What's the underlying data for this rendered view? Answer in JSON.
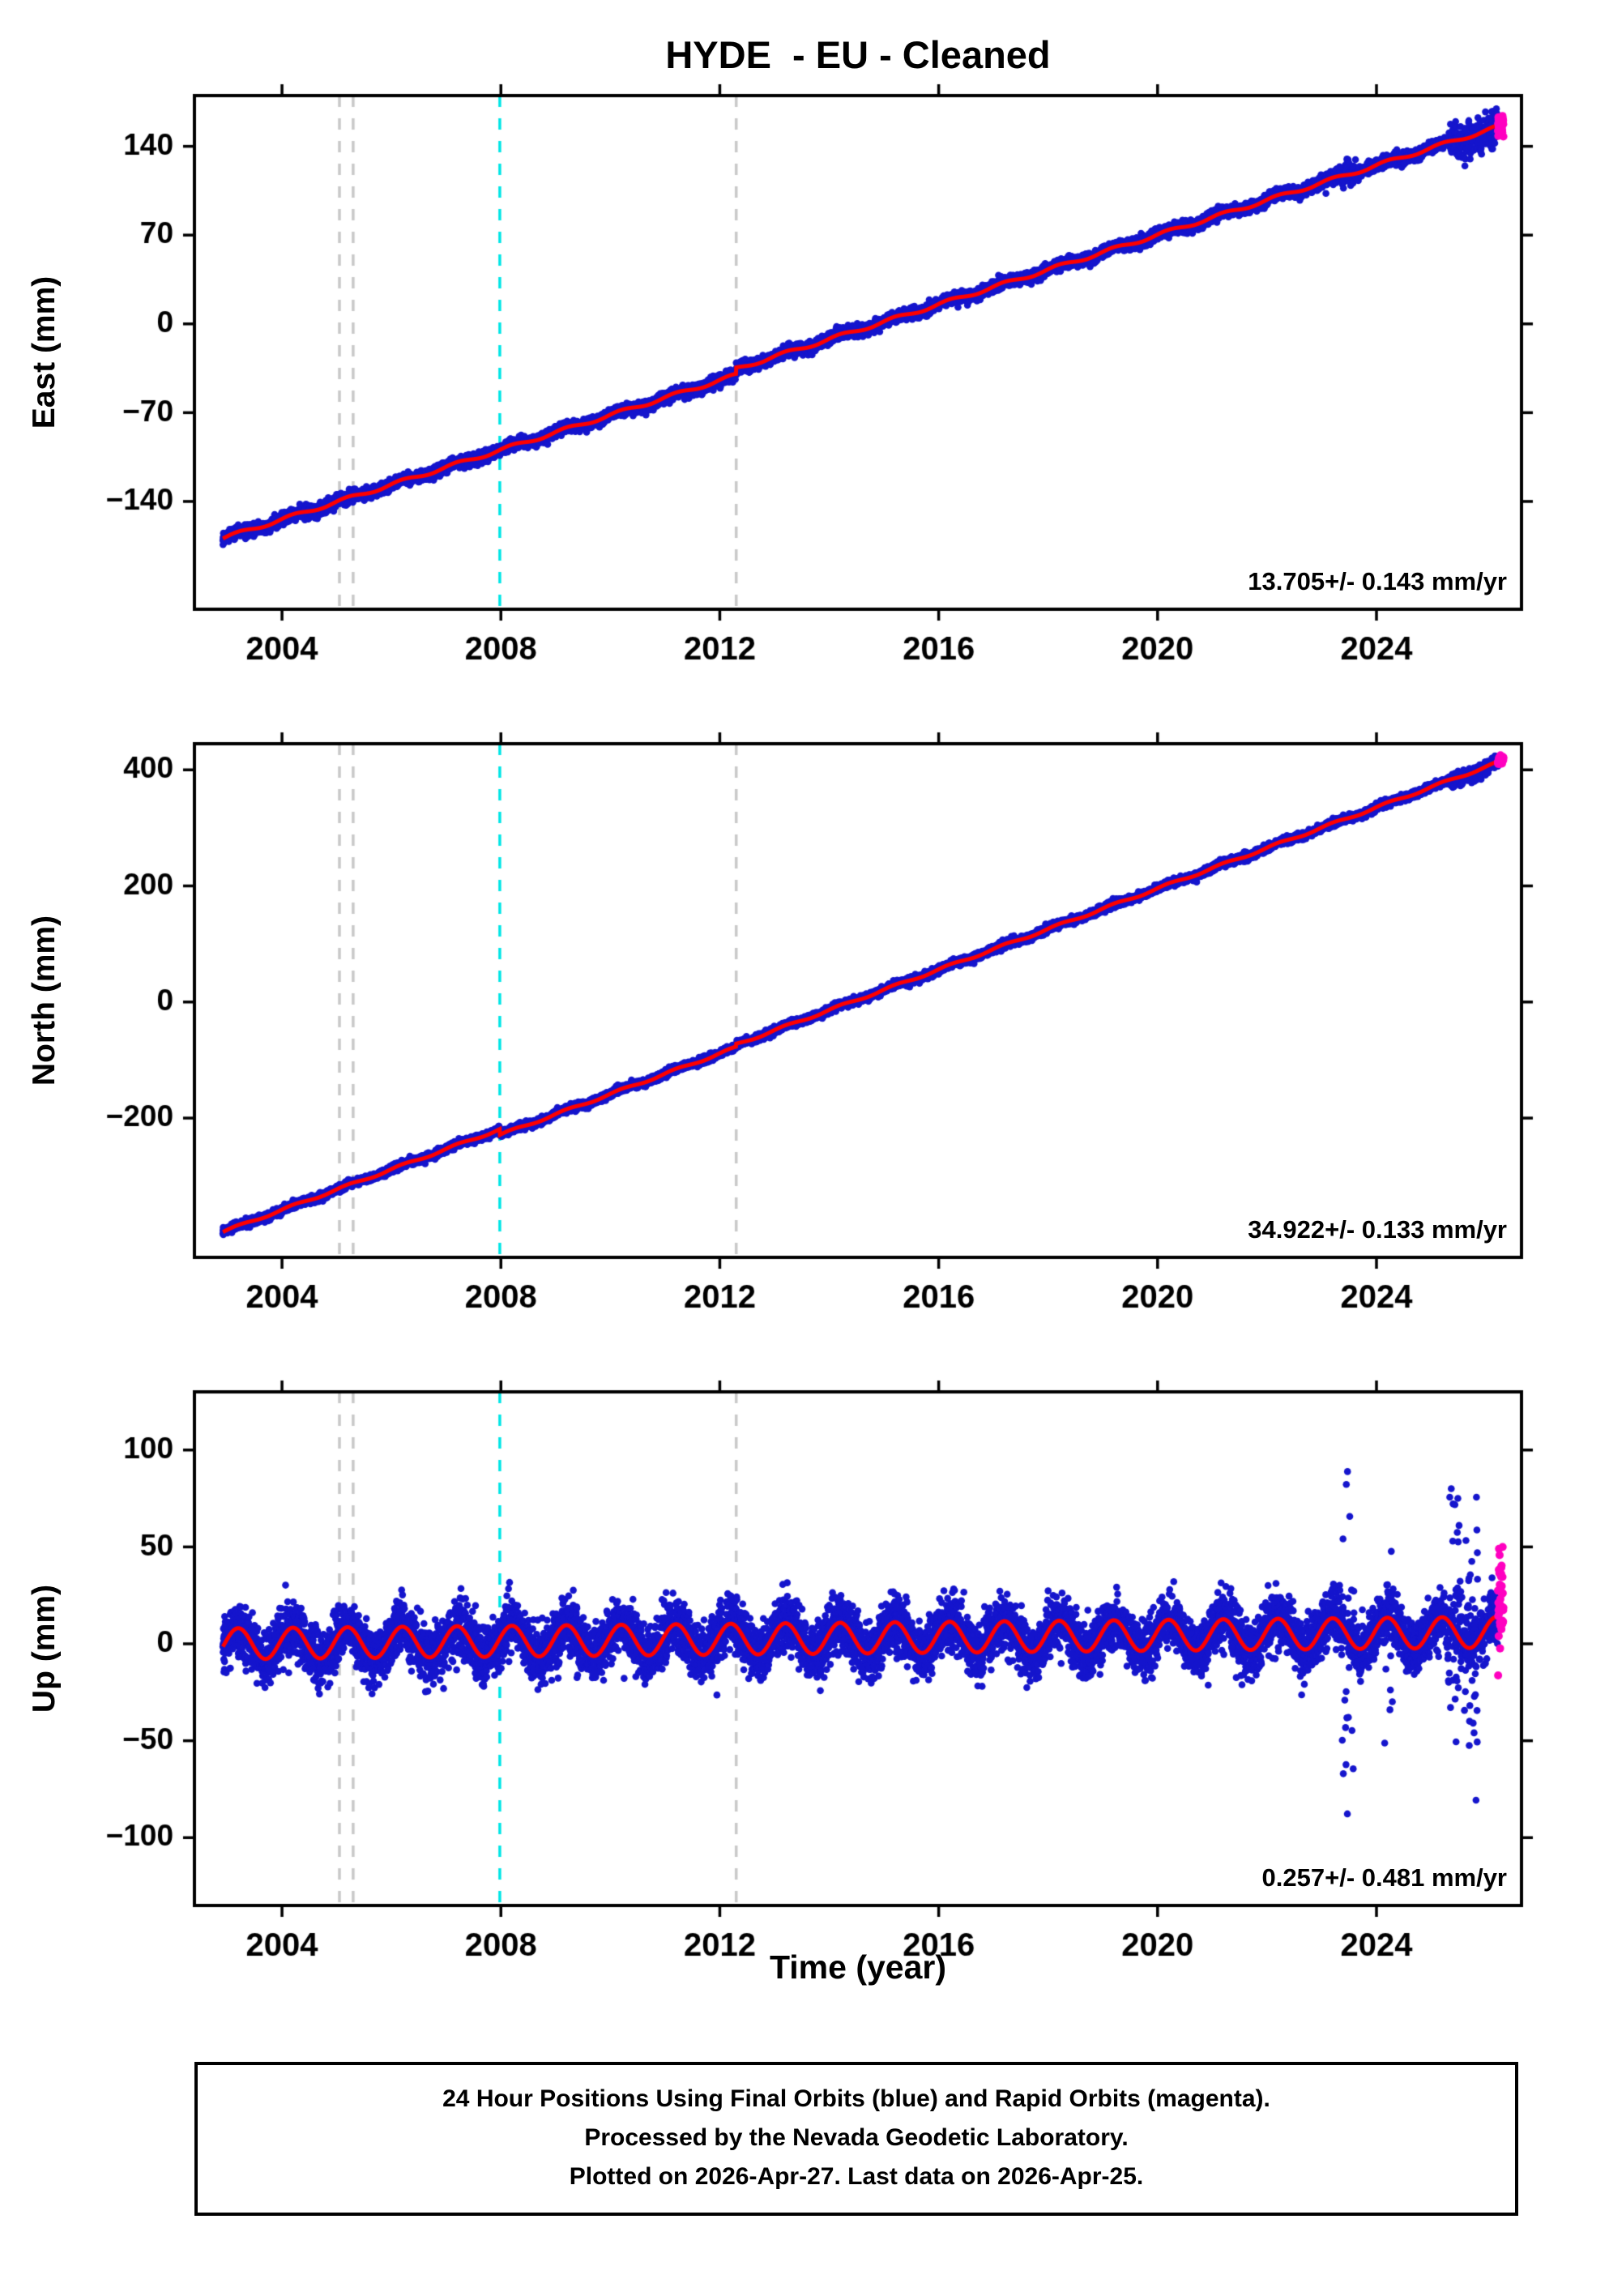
{
  "chart_data": {
    "type": "scatter",
    "title": "HYDE  - EU - Cleaned",
    "xlabel": "Time (year)",
    "x": {
      "lim": [
        2002.4,
        2026.65
      ],
      "ticks": [
        2004,
        2008,
        2012,
        2016,
        2020,
        2024
      ],
      "data_start": 2002.92,
      "final_end": 2026.22,
      "rapid_end": 2026.32
    },
    "event_lines": [
      {
        "x": 2005.05,
        "color": "#c9c9c9"
      },
      {
        "x": 2005.3,
        "color": "#c9c9c9"
      },
      {
        "x": 2007.98,
        "color": "#00e6e6"
      },
      {
        "x": 2012.3,
        "color": "#c9c9c9"
      }
    ],
    "colors": {
      "final": "#1515cd",
      "rapid": "#ff00c0",
      "trend": "#ff0000",
      "frame": "#000000"
    },
    "legend": {
      "final": "Final Orbits (blue)",
      "rapid": "Rapid Orbits (magenta)"
    },
    "panels": [
      {
        "name": "east",
        "ylabel": "East (mm)",
        "rate": "13.705+/- 0.143 mm/yr",
        "ylim": [
          -225,
          180
        ],
        "yticks": [
          -140,
          -70,
          0,
          70,
          140
        ],
        "start_value": -169,
        "slope": 13.705,
        "seasonal_amp": 1.4,
        "seasonal_peak": 0.2,
        "noise_sd": 2.2,
        "rapid_sd": 4,
        "rapid_offset": 0,
        "offsets": [
          {
            "t": 2012.3,
            "dv": 5
          }
        ],
        "outlier_clusters": [
          {
            "t0": 2023.3,
            "t1": 2023.65,
            "frac": 0.3,
            "scale": 5
          },
          {
            "t0": 2025.35,
            "t1": 2026.22,
            "frac": 0.5,
            "scale": 8
          }
        ]
      },
      {
        "name": "north",
        "ylabel": "North (mm)",
        "rate": "34.922+/- 0.133 mm/yr",
        "ylim": [
          -440,
          445
        ],
        "yticks": [
          -200,
          0,
          200,
          400
        ],
        "start_value": -396,
        "slope": 34.922,
        "seasonal_amp": 2.0,
        "seasonal_peak": 0.2,
        "noise_sd": 3.0,
        "rapid_sd": 4,
        "rapid_offset": 0,
        "offsets": [
          {
            "t": 2007.98,
            "dv": -10
          },
          {
            "t": 2012.3,
            "dv": 5
          }
        ],
        "outlier_clusters": [
          {
            "t0": 2025.35,
            "t1": 2026.22,
            "frac": 0.4,
            "scale": 7
          }
        ]
      },
      {
        "name": "up",
        "ylabel": "Up (mm)",
        "rate": "0.257+/- 0.481 mm/yr",
        "ylim": [
          -135,
          130
        ],
        "yticks": [
          -100,
          -50,
          0,
          50,
          100
        ],
        "start_value": 0,
        "slope": 0.257,
        "seasonal_amp": 8,
        "seasonal_peak": 0.2,
        "noise_sd": 7,
        "rapid_sd": 15,
        "rapid_offset": 8,
        "offsets": [],
        "outlier_clusters": [
          {
            "t0": 2023.35,
            "t1": 2023.6,
            "frac": 0.3,
            "scale": 45
          },
          {
            "t0": 2024.15,
            "t1": 2024.3,
            "frac": 0.25,
            "scale": 25
          },
          {
            "t0": 2025.3,
            "t1": 2025.85,
            "frac": 0.45,
            "scale": 35
          }
        ]
      }
    ]
  },
  "footer": {
    "line1": "24 Hour Positions Using Final Orbits (blue) and Rapid Orbits (magenta).",
    "line2": "Processed by the Nevada Geodetic Laboratory.",
    "line3": "Plotted on 2026-Apr-27. Last data on 2026-Apr-25."
  }
}
